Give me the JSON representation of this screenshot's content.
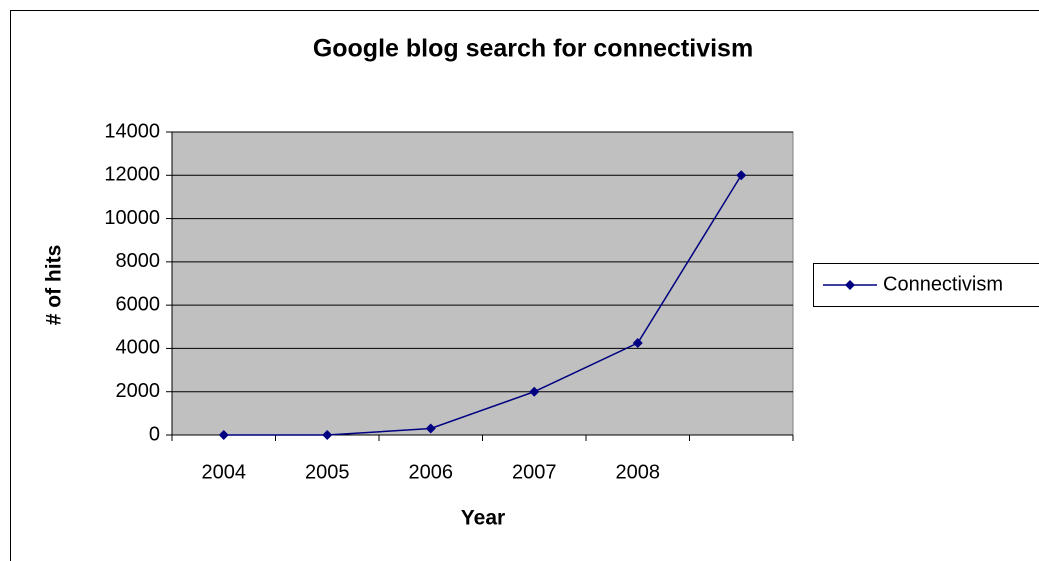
{
  "chart_data": {
    "type": "line",
    "title": "Google blog search for connectivism",
    "x_label": "Year",
    "y_label": "# of hits",
    "categories": [
      "2004",
      "2005",
      "2006",
      "2007",
      "2008",
      null
    ],
    "series": [
      {
        "name": "Connectivism",
        "color": "#000080",
        "values": [
          0,
          0,
          300,
          2000,
          4250,
          12000
        ]
      }
    ],
    "ylim": [
      0,
      14000
    ],
    "yticks": [
      0,
      2000,
      4000,
      6000,
      8000,
      10000,
      12000,
      14000
    ],
    "grid": true,
    "legend": "right",
    "plot_background": "#c0c0c0"
  }
}
